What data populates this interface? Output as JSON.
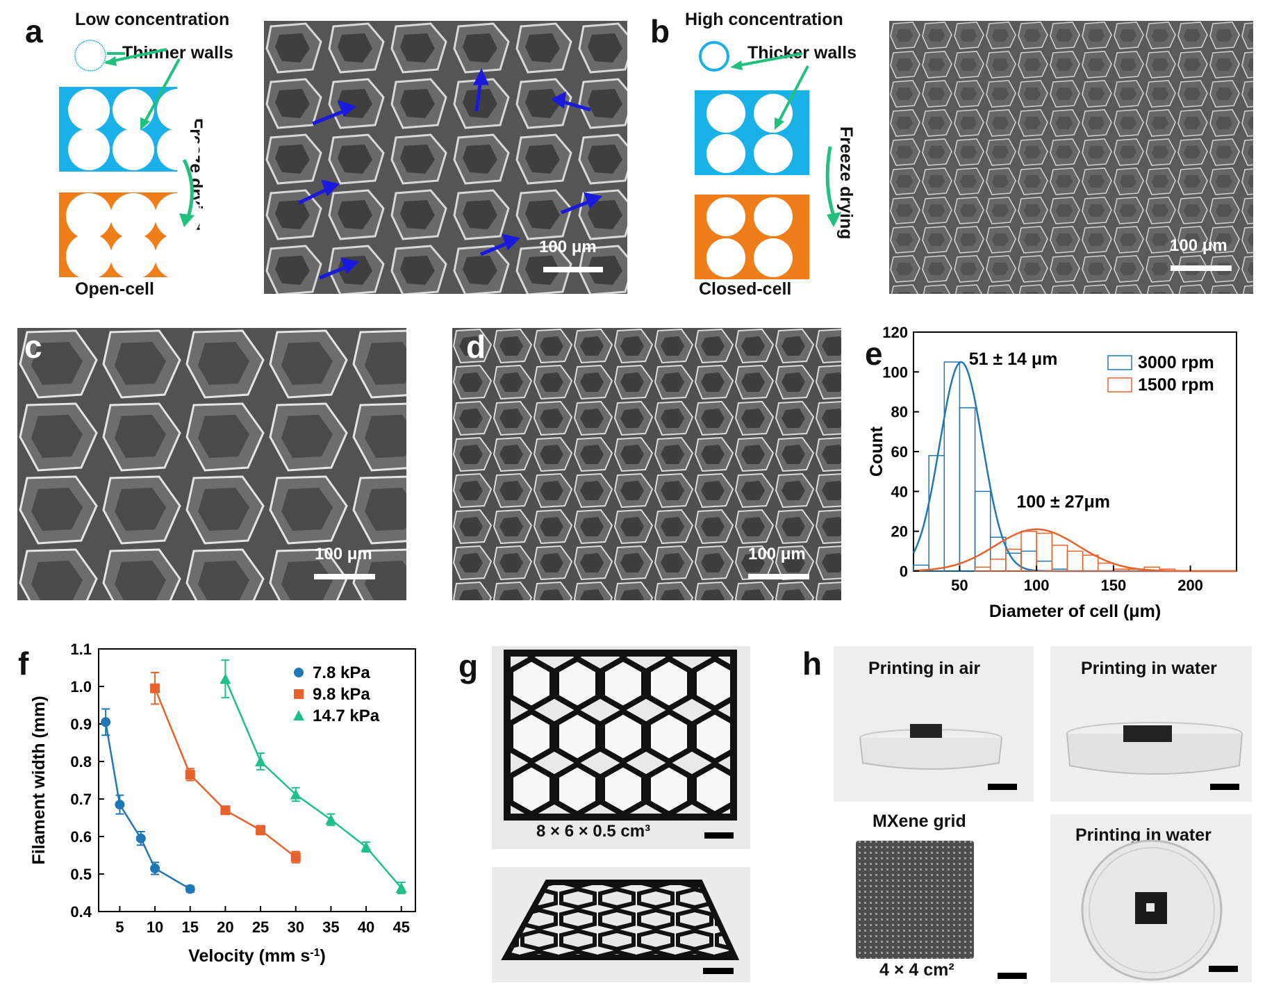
{
  "panel_a": {
    "label": "a",
    "top_text": "Low concentration",
    "walls_text": "Thinner walls",
    "process_text": "Freeze drying",
    "bottom_text": "Open-cell",
    "scale_text": "100 μm"
  },
  "panel_b": {
    "label": "b",
    "top_text": "High concentration",
    "walls_text": "Thicker walls",
    "process_text": "Freeze drying",
    "bottom_text": "Closed-cell",
    "scale_text": "100 μm"
  },
  "panel_c": {
    "label": "c",
    "scale_text": "100 μm"
  },
  "panel_d": {
    "label": "d",
    "scale_text": "100 μm"
  },
  "panel_g": {
    "label": "g",
    "size_text": "8 × 6 × 0.5 cm³"
  },
  "panel_h": {
    "label": "h",
    "photo1": "Printing in air",
    "photo2": "Printing in water",
    "photo3": "MXene grid",
    "photo3_size": "4 × 4 cm²",
    "photo4": "Printing in water"
  },
  "colors": {
    "blue": "#1f77b4",
    "orange": "#e8622c",
    "green": "#1fbf8a",
    "cyan_fill": "#1ab0e8",
    "orange_fill": "#ef7d1a",
    "arrow_green": "#22c07d",
    "sem_arrow": "#1a1adf"
  },
  "chart_data": [
    {
      "panel": "e",
      "label": "e",
      "type": "bar",
      "xlabel": "Diameter of cell (μm)",
      "ylabel": "Count",
      "xlim": [
        20,
        230
      ],
      "ylim": [
        0,
        120
      ],
      "xticks": [
        50,
        100,
        150,
        200
      ],
      "yticks": [
        0,
        20,
        40,
        60,
        80,
        100,
        120
      ],
      "grid": false,
      "legend": "top-right",
      "series": [
        {
          "name": "3000 rpm",
          "color": "#1f77b4",
          "bin_width": 10,
          "bins": [
            20,
            30,
            40,
            50,
            60,
            70,
            80,
            90,
            100,
            110
          ],
          "counts": [
            3,
            58,
            105,
            82,
            40,
            17,
            9,
            10,
            5,
            1
          ],
          "fit": {
            "mean": 51,
            "sd": 14,
            "peak": 105
          },
          "annotation": "51 ± 14 μm"
        },
        {
          "name": "1500 rpm",
          "color": "#e8622c",
          "bin_width": 10,
          "bins": [
            60,
            70,
            80,
            90,
            100,
            110,
            120,
            130,
            140,
            150,
            160,
            170,
            180
          ],
          "counts": [
            2,
            6,
            11,
            20,
            19,
            13,
            10,
            8,
            4,
            1,
            1,
            2,
            1
          ],
          "fit": {
            "mean": 100,
            "sd": 27,
            "peak": 21
          },
          "annotation": "100 ± 27μm"
        }
      ]
    },
    {
      "panel": "f",
      "label": "f",
      "type": "line",
      "xlabel": "Velocity (mm s",
      "xlabel_sup": "-1",
      "xlabel_end": ")",
      "ylabel": "Filament width (mm)",
      "xlim": [
        2,
        47
      ],
      "ylim": [
        0.4,
        1.1
      ],
      "xticks": [
        5,
        10,
        15,
        20,
        25,
        30,
        35,
        40,
        45
      ],
      "yticks": [
        0.4,
        0.5,
        0.6,
        0.7,
        0.8,
        0.9,
        1.0,
        1.1
      ],
      "yticklabels": [
        "0.4",
        "0.5",
        "0.6",
        "0.7",
        "0.8",
        "0.9",
        "1.0",
        "1.1"
      ],
      "grid": false,
      "legend": "top-right",
      "series": [
        {
          "name": "7.8 kPa",
          "color": "#1f77b4",
          "marker": "circle",
          "x": [
            3,
            5,
            8,
            10,
            15
          ],
          "y": [
            0.905,
            0.685,
            0.595,
            0.515,
            0.46
          ],
          "err": [
            0.035,
            0.025,
            0.018,
            0.016,
            0.008
          ]
        },
        {
          "name": "9.8 kPa",
          "color": "#e8622c",
          "marker": "square",
          "x": [
            10,
            15,
            20,
            25,
            30
          ],
          "y": [
            0.995,
            0.765,
            0.67,
            0.617,
            0.545
          ],
          "err": [
            0.042,
            0.016,
            0.01,
            0.012,
            0.015
          ]
        },
        {
          "name": "14.7 kPa",
          "color": "#1fbf8a",
          "marker": "triangle",
          "x": [
            20,
            25,
            30,
            35,
            40,
            45
          ],
          "y": [
            1.02,
            0.8,
            0.712,
            0.645,
            0.572,
            0.463
          ],
          "err": [
            0.05,
            0.022,
            0.018,
            0.015,
            0.013,
            0.015
          ]
        }
      ]
    }
  ]
}
